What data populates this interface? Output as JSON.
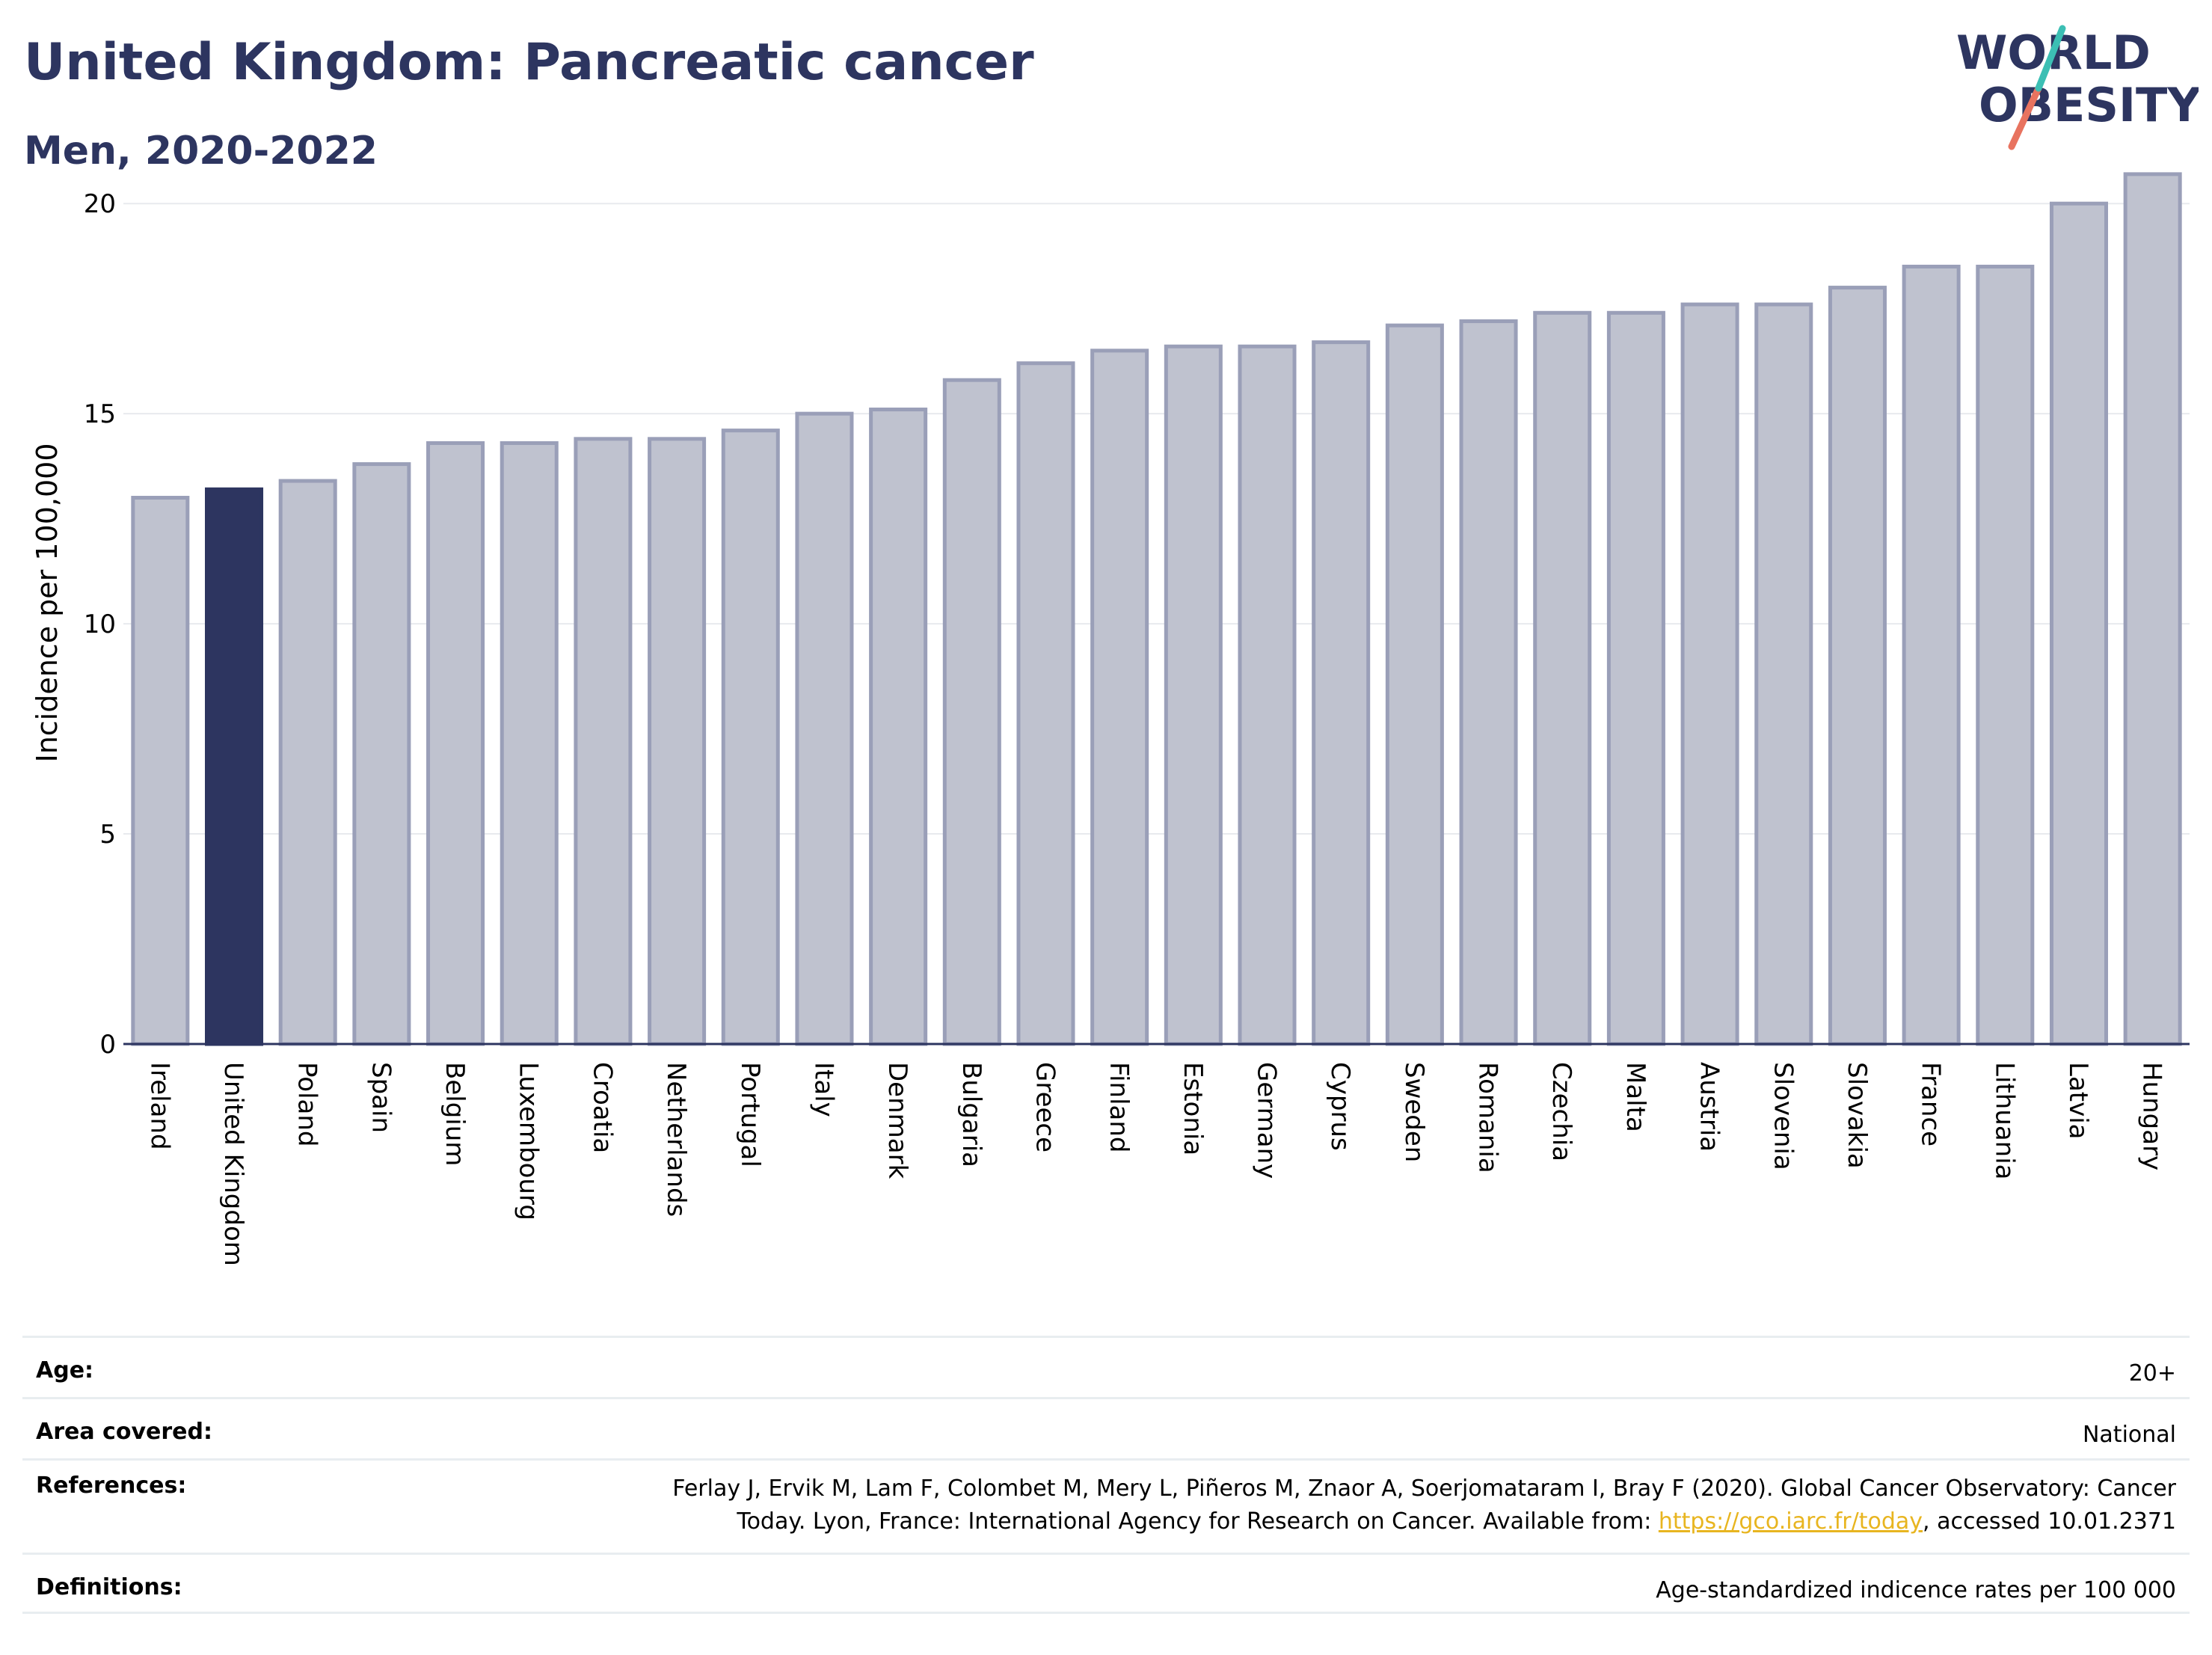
{
  "header": {
    "title": "United Kingdom: Pancreatic cancer",
    "subtitle": "Men, 2020-2022"
  },
  "logo": {
    "line1": "WORLD",
    "line2": "OBESITY"
  },
  "colors": {
    "highlight_bar": "#2d3560",
    "other_bar_fill": "#bfc2cf",
    "other_bar_stroke": "#9a9fb8",
    "gridline": "#e8eaee",
    "logo_teal": "#3cbfb4",
    "logo_coral": "#e8735f"
  },
  "chart_data": {
    "type": "bar",
    "ylabel": "Incidence per 100,000",
    "xlabel": "",
    "ylim": [
      0,
      21
    ],
    "yticks": [
      0,
      5,
      10,
      15,
      20
    ],
    "grid": true,
    "highlight": "United Kingdom",
    "categories": [
      "Ireland",
      "United Kingdom",
      "Poland",
      "Spain",
      "Belgium",
      "Luxembourg",
      "Croatia",
      "Netherlands",
      "Portugal",
      "Italy",
      "Denmark",
      "Bulgaria",
      "Greece",
      "Finland",
      "Estonia",
      "Germany",
      "Cyprus",
      "Sweden",
      "Romania",
      "Czechia",
      "Malta",
      "Austria",
      "Slovenia",
      "Slovakia",
      "France",
      "Lithuania",
      "Latvia",
      "Hungary"
    ],
    "values": [
      13.0,
      13.2,
      13.4,
      13.8,
      14.3,
      14.3,
      14.4,
      14.4,
      14.6,
      15.0,
      15.1,
      15.8,
      16.2,
      16.5,
      16.6,
      16.6,
      16.7,
      17.1,
      17.2,
      17.4,
      17.4,
      17.6,
      17.6,
      18.0,
      18.5,
      18.5,
      20.0,
      20.7
    ]
  },
  "info": {
    "age_label": "Age:",
    "age_value": "20+",
    "area_label": "Area covered:",
    "area_value": "National",
    "references_label": "References:",
    "references_line1": "Ferlay J, Ervik M, Lam F, Colombet M, Mery L, Piñeros M, Znaor A, Soerjomataram I, Bray F (2020). Global Cancer Observatory: Cancer",
    "references_line2_pre": "Today. Lyon, France: International Agency for Research on Cancer. Available from: ",
    "references_link": "https://gco.iarc.fr/today",
    "references_line2_post": ", accessed 10.01.2371",
    "definitions_label": "Definitions:",
    "definitions_value": "Age-standardized indicence rates per 100 000"
  }
}
